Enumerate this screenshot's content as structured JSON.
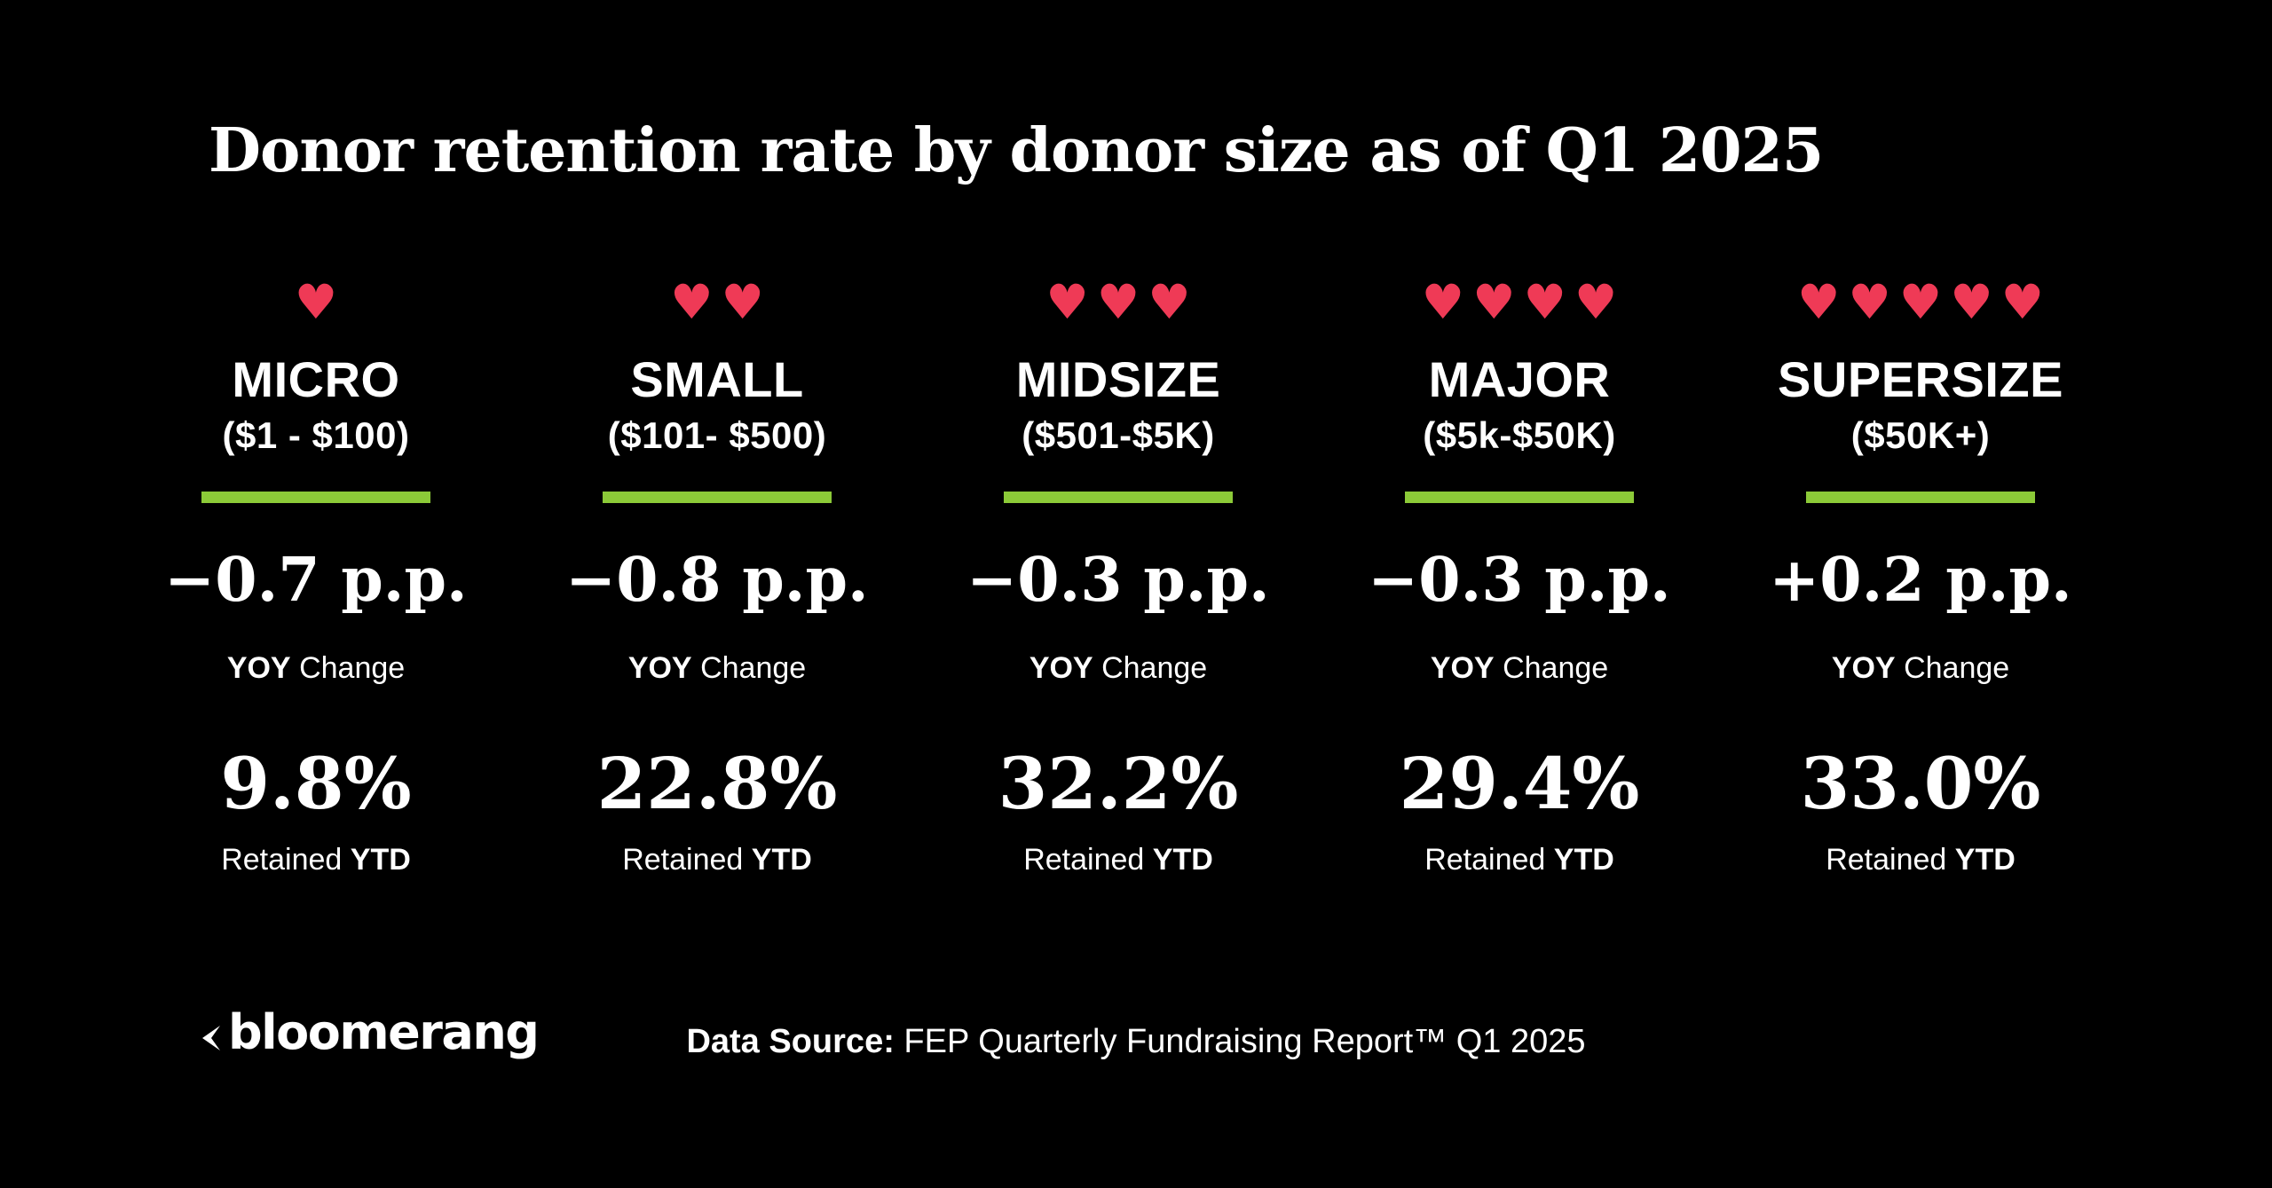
{
  "title": "Donor retention rate by donor size as of Q1 2025",
  "colors": {
    "background": "#000000",
    "text": "#ffffff",
    "heart": "#ef3a56",
    "underline_green": "#8cca38"
  },
  "icons": {
    "heart_glyph": "♥"
  },
  "labels": {
    "yoy_bold": "YOY",
    "yoy_rest": " Change",
    "retained_rest": "Retained ",
    "retained_bold": "YTD"
  },
  "columns": [
    {
      "name": "MICRO",
      "range": "($1 - $100)",
      "hearts": 1,
      "yoy": "−0.7 p.p.",
      "retained": "9.8%"
    },
    {
      "name": "SMALL",
      "range": "($101- $500)",
      "hearts": 2,
      "yoy": "−0.8 p.p.",
      "retained": "22.8%"
    },
    {
      "name": "MIDSIZE",
      "range": "($501-$5K)",
      "hearts": 3,
      "yoy": "−0.3 p.p.",
      "retained": "32.2%"
    },
    {
      "name": "MAJOR",
      "range": "($5k-$50K)",
      "hearts": 4,
      "yoy": "−0.3 p.p.",
      "retained": "29.4%"
    },
    {
      "name": "SUPERSIZE",
      "range": "($50K+)",
      "hearts": 5,
      "yoy": "+0.2 p.p.",
      "retained": "33.0%"
    }
  ],
  "footer": {
    "logo_text": "bloomerang",
    "source_bold": "Data Source:",
    "source_rest": " FEP Quarterly Fundraising Report™ Q1 2025"
  },
  "chart_data": {
    "type": "table",
    "title": "Donor retention rate by donor size as of Q1 2025",
    "categories": [
      "MICRO ($1 - $100)",
      "SMALL ($101- $500)",
      "MIDSIZE ($501-$5K)",
      "MAJOR ($5k-$50K)",
      "SUPERSIZE ($50K+)"
    ],
    "series": [
      {
        "name": "YOY Change (p.p.)",
        "values": [
          -0.7,
          -0.8,
          -0.3,
          -0.3,
          0.2
        ]
      },
      {
        "name": "Retained YTD (%)",
        "values": [
          9.8,
          22.8,
          32.2,
          29.4,
          33.0
        ]
      },
      {
        "name": "Heart icons (count)",
        "values": [
          1,
          2,
          3,
          4,
          5
        ]
      }
    ],
    "source": "FEP Quarterly Fundraising Report™ Q1 2025"
  }
}
